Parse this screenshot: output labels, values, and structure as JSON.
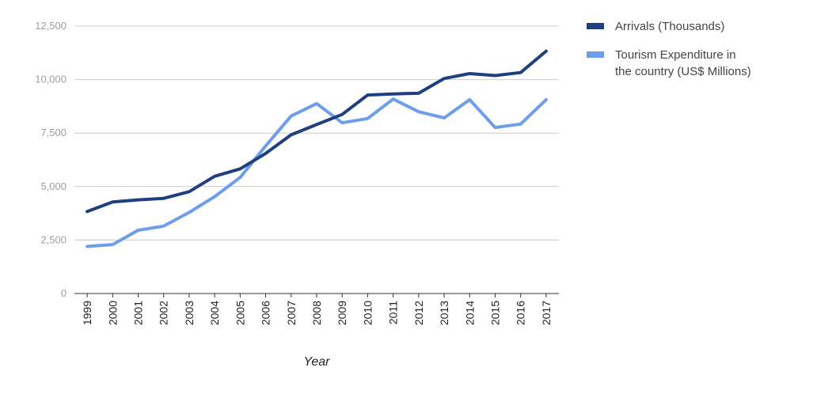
{
  "chart_data": {
    "type": "line",
    "title": "",
    "xlabel": "Year",
    "ylabel": "",
    "ylim": [
      0,
      12500
    ],
    "yticks": [
      0,
      2500,
      5000,
      7500,
      10000,
      12500
    ],
    "ytick_labels": [
      "0",
      "2,500",
      "5,000",
      "7,500",
      "10,000",
      "12,500"
    ],
    "categories": [
      "1999",
      "2000",
      "2001",
      "2002",
      "2003",
      "2004",
      "2005",
      "2006",
      "2007",
      "2008",
      "2009",
      "2010",
      "2011",
      "2012",
      "2013",
      "2014",
      "2015",
      "2016",
      "2017"
    ],
    "grid": true,
    "legend_position": "right",
    "series": [
      {
        "name": "Arrivals (Thousands)",
        "color": "#1f3f80",
        "values": [
          3830,
          4280,
          4380,
          4450,
          4760,
          5480,
          5830,
          6550,
          7420,
          7900,
          8370,
          9280,
          9330,
          9360,
          10050,
          10280,
          10190,
          10330,
          11330
        ]
      },
      {
        "name": "Tourism Expenditure in the country (US$ Millions)",
        "color": "#6d9eeb",
        "values": [
          2200,
          2290,
          2960,
          3150,
          3790,
          4530,
          5430,
          6900,
          8300,
          8880,
          7980,
          8180,
          9090,
          8500,
          8210,
          9060,
          7760,
          7920,
          9060
        ]
      }
    ]
  }
}
